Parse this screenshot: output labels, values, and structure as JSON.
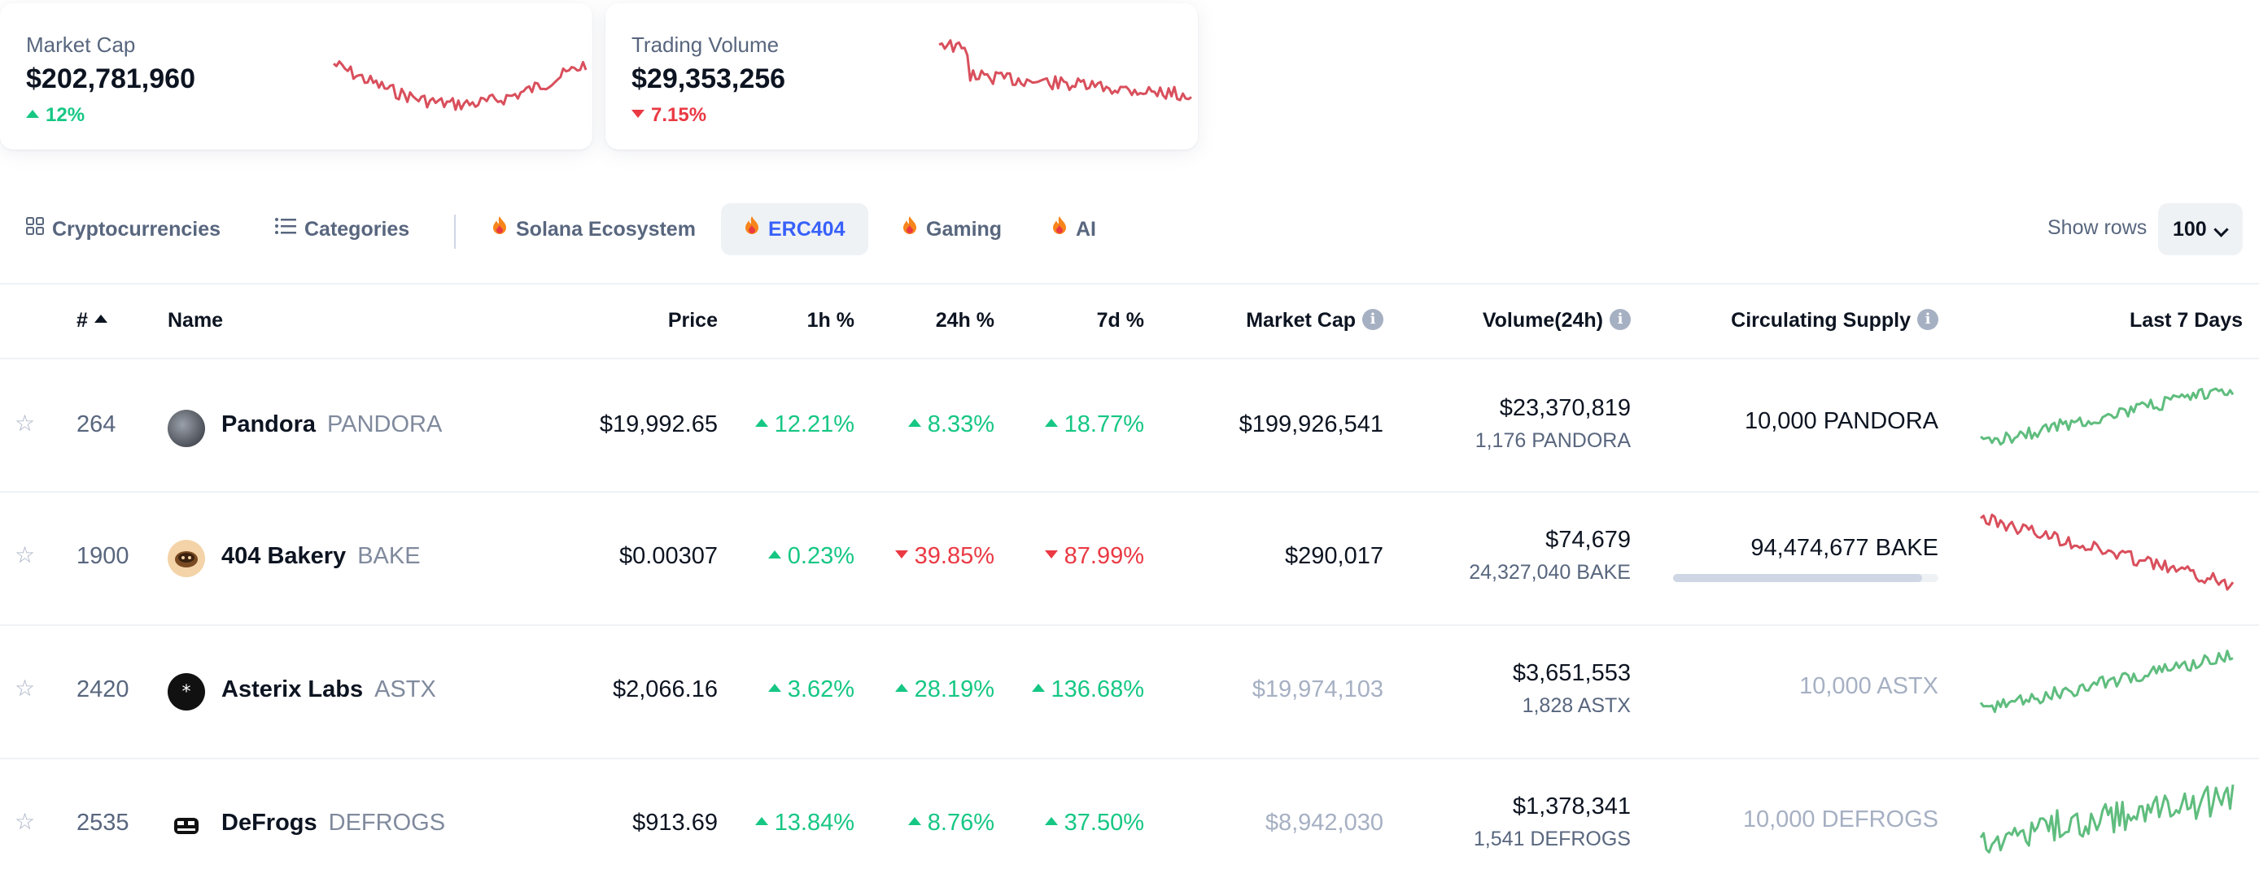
{
  "stats": {
    "market_cap": {
      "label": "Market Cap",
      "value": "$202,781,960",
      "change": "12%",
      "direction": "up"
    },
    "trading_volume": {
      "label": "Trading Volume",
      "value": "$29,353,256",
      "change": "7.15%",
      "direction": "down"
    }
  },
  "tabs": [
    {
      "label": "Cryptocurrencies",
      "icon": "grid-icon"
    },
    {
      "label": "Categories",
      "icon": "list-icon"
    },
    {
      "label": "Solana Ecosystem",
      "icon": "fire-icon"
    },
    {
      "label": "ERC404",
      "icon": "fire-icon",
      "active": true
    },
    {
      "label": "Gaming",
      "icon": "fire-icon"
    },
    {
      "label": "AI",
      "icon": "fire-icon"
    }
  ],
  "show_rows": {
    "label": "Show rows",
    "value": "100"
  },
  "columns": {
    "rank": "#",
    "name": "Name",
    "price": "Price",
    "h1": "1h %",
    "h24": "24h %",
    "d7": "7d %",
    "market_cap": "Market Cap",
    "volume": "Volume(24h)",
    "supply": "Circulating Supply",
    "last7": "Last 7 Days"
  },
  "rows": [
    {
      "rank": "264",
      "name": "Pandora",
      "symbol": "PANDORA",
      "price": "$19,992.65",
      "h1": "12.21%",
      "h1_dir": "up",
      "h24": "8.33%",
      "h24_dir": "up",
      "d7": "18.77%",
      "d7_dir": "up",
      "market_cap": "$199,926,541",
      "volume": "$23,370,819",
      "volume_sub": "1,176 PANDORA",
      "supply": "10,000 PANDORA",
      "trend": "up"
    },
    {
      "rank": "1900",
      "name": "404 Bakery",
      "symbol": "BAKE",
      "price": "$0.00307",
      "h1": "0.23%",
      "h1_dir": "up",
      "h24": "39.85%",
      "h24_dir": "down",
      "d7": "87.99%",
      "d7_dir": "down",
      "market_cap": "$290,017",
      "volume": "$74,679",
      "volume_sub": "24,327,040 BAKE",
      "supply": "94,474,677 BAKE",
      "supply_fraction": 0.94,
      "trend": "down"
    },
    {
      "rank": "2420",
      "name": "Asterix Labs",
      "symbol": "ASTX",
      "price": "$2,066.16",
      "h1": "3.62%",
      "h1_dir": "up",
      "h24": "28.19%",
      "h24_dir": "up",
      "d7": "136.68%",
      "d7_dir": "up",
      "market_cap": "$19,974,103",
      "volume": "$3,651,553",
      "volume_sub": "1,828 ASTX",
      "supply": "10,000 ASTX",
      "trend": "up"
    },
    {
      "rank": "2535",
      "name": "DeFrogs",
      "symbol": "DEFROGS",
      "price": "$913.69",
      "h1": "13.84%",
      "h1_dir": "up",
      "h24": "8.76%",
      "h24_dir": "up",
      "d7": "37.50%",
      "d7_dir": "up",
      "market_cap": "$8,942,030",
      "volume": "$1,378,341",
      "volume_sub": "1,541 DEFROGS",
      "supply": "10,000 DEFROGS",
      "trend": "up"
    }
  ],
  "colors": {
    "up": "#16c784",
    "down": "#ea3943",
    "accent": "#3861fb",
    "spark_red": "#d94f5c",
    "spark_green": "#5fbd7e"
  }
}
